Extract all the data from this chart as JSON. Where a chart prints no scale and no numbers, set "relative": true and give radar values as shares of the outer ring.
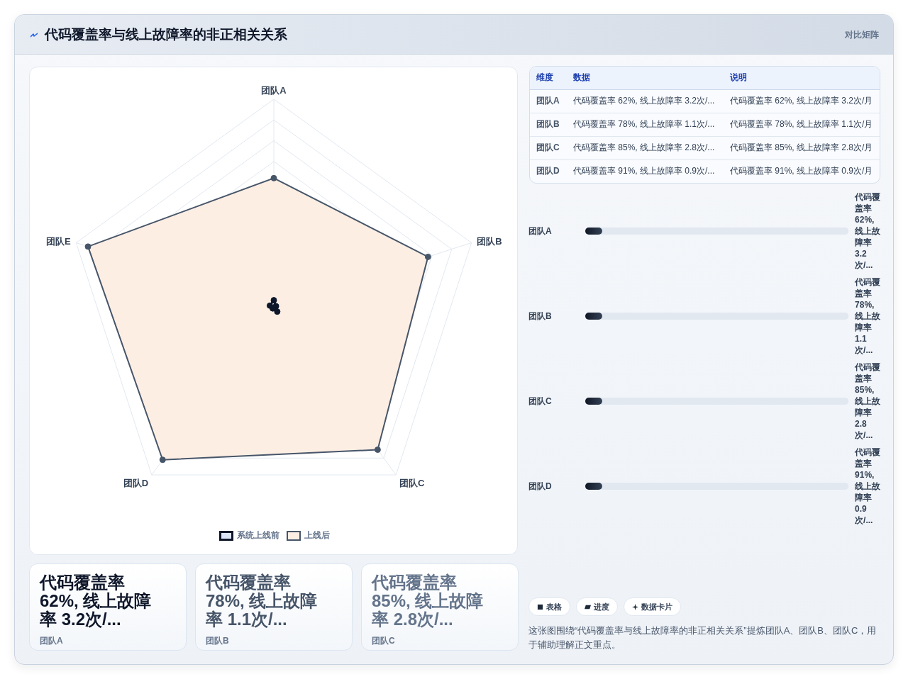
{
  "chart_data": [
    {
      "type": "other",
      "title": "代码覆盖率与线上故障率的非正相关关系",
      "subtitle": "对比矩阵"
    },
    {
      "type": "radar",
      "categories": [
        "团队A",
        "团队B",
        "团队C",
        "团队D",
        "团队E"
      ],
      "relative": true,
      "series": [
        {
          "name": "系统上线前",
          "color": "#0f172a",
          "values": [
            0.032,
            0.011,
            0.028,
            0.009,
            0.02
          ]
        },
        {
          "name": "上线后",
          "color": "#475569",
          "values": [
            0.62,
            0.78,
            0.85,
            0.91,
            0.94
          ]
        }
      ],
      "marker": "circle",
      "legend": "bottom",
      "grid": true
    },
    {
      "type": "other",
      "categories": [
        "维度",
        "数据",
        "说明"
      ],
      "y_categories": [
        "团队A",
        "团队B",
        "团队C",
        "团队D"
      ],
      "cell_labels": [
        [
          "代码覆盖率 62%, 线上故障率 3.2次/...",
          "代码覆盖率 62%, 线上故障率 3.2次/月"
        ],
        [
          "代码覆盖率 78%, 线上故障率 1.1次/...",
          "代码覆盖率 78%, 线上故障率 1.1次/月"
        ],
        [
          "代码覆盖率 85%, 线上故障率 2.8次/...",
          "代码覆盖率 85%, 线上故障率 2.8次/月"
        ],
        [
          "代码覆盖率 91%, 线上故障率 0.9次/...",
          "代码覆盖率 91%, 线上故障率 0.9次/月"
        ]
      ]
    },
    {
      "type": "other",
      "categories": [
        "团队A",
        "团队B",
        "团队C",
        "团队D"
      ],
      "annotations": [
        "代码覆盖率 62%, 线上故障率 3.2次/...",
        "代码覆盖率 78%, 线上故障率 1.1次/...",
        "代码覆盖率 85%, 线上故障率 2.8次/...",
        "代码覆盖率 91%, 线上故障率 0.9次/..."
      ]
    },
    {
      "type": "other",
      "categories": [
        "团队A",
        "团队B",
        "团队C"
      ],
      "annotations": [
        "代码覆盖率 62%, 线上故障率 3.2次/...",
        "代码覆盖率 78%, 线上故障率 1.1次/...",
        "代码覆盖率 85%, 线上故障率 2.8次/..."
      ]
    },
    {
      "type": "other",
      "categories": [
        "表格",
        "进度",
        "数据卡片"
      ],
      "annotations": [
        "这张图围绕“代码覆盖率与线上故障率的非正相关关系”提炼团队A、团队B、团队C，用于辅助理解正文重点。"
      ]
    }
  ]
}
